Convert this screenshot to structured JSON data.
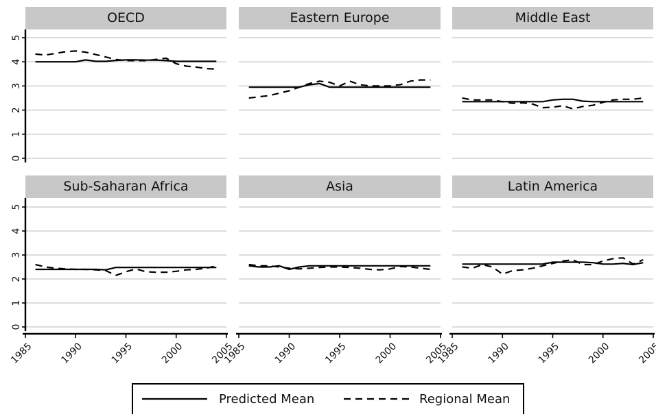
{
  "chart_data": {
    "type": "line",
    "xlim": [
      1985,
      2005
    ],
    "ylim": [
      0,
      5
    ],
    "x_ticks": [
      "1985",
      "1990",
      "1995",
      "2000",
      "2005"
    ],
    "y_ticks": [
      "0",
      "1",
      "2",
      "3",
      "4",
      "5"
    ],
    "grid": true,
    "legend_position": "bottom",
    "legend": [
      "Predicted Mean",
      "Regional Mean"
    ],
    "x": [
      1986,
      1987,
      1988,
      1989,
      1990,
      1991,
      1992,
      1993,
      1994,
      1995,
      1996,
      1997,
      1998,
      1999,
      2000,
      2001,
      2002,
      2003,
      2004
    ],
    "panels": [
      {
        "title": "OECD",
        "series": [
          {
            "name": "Predicted Mean",
            "values": [
              4.0,
              4.0,
              4.0,
              4.0,
              4.0,
              4.08,
              4.02,
              4.02,
              4.06,
              4.08,
              4.08,
              4.07,
              4.07,
              4.05,
              4.02,
              4.02,
              4.02,
              4.02,
              4.02
            ]
          },
          {
            "name": "Regional Mean",
            "values": [
              4.32,
              4.28,
              4.35,
              4.42,
              4.45,
              4.4,
              4.3,
              4.2,
              4.1,
              4.05,
              4.05,
              4.05,
              4.1,
              4.15,
              3.92,
              3.82,
              3.78,
              3.72,
              3.7
            ]
          }
        ]
      },
      {
        "title": "Eastern Europe",
        "series": [
          {
            "name": "Predicted Mean",
            "values": [
              2.95,
              2.95,
              2.95,
              2.95,
              2.95,
              2.95,
              3.05,
              3.1,
              2.95,
              2.95,
              2.95,
              2.95,
              2.95,
              2.95,
              2.95,
              2.95,
              2.95,
              2.95,
              2.95
            ]
          },
          {
            "name": "Regional Mean",
            "values": [
              2.5,
              2.55,
              2.6,
              2.7,
              2.8,
              2.95,
              3.1,
              3.2,
              3.15,
              3.0,
              3.2,
              3.05,
              3.0,
              3.0,
              3.0,
              3.05,
              3.2,
              3.25,
              3.25
            ]
          }
        ]
      },
      {
        "title": "Middle East",
        "series": [
          {
            "name": "Predicted Mean",
            "values": [
              2.35,
              2.35,
              2.35,
              2.35,
              2.35,
              2.35,
              2.35,
              2.35,
              2.35,
              2.42,
              2.45,
              2.45,
              2.37,
              2.35,
              2.35,
              2.35,
              2.35,
              2.35,
              2.35
            ]
          },
          {
            "name": "Regional Mean",
            "values": [
              2.5,
              2.42,
              2.42,
              2.42,
              2.35,
              2.28,
              2.3,
              2.25,
              2.1,
              2.12,
              2.18,
              2.05,
              2.15,
              2.2,
              2.32,
              2.42,
              2.45,
              2.45,
              2.5
            ]
          }
        ]
      },
      {
        "title": "Sub-Saharan Africa",
        "series": [
          {
            "name": "Predicted Mean",
            "values": [
              2.4,
              2.4,
              2.4,
              2.4,
              2.4,
              2.4,
              2.4,
              2.38,
              2.48,
              2.48,
              2.48,
              2.48,
              2.48,
              2.48,
              2.48,
              2.48,
              2.48,
              2.48,
              2.48
            ]
          },
          {
            "name": "Regional Mean",
            "values": [
              2.6,
              2.5,
              2.45,
              2.42,
              2.4,
              2.4,
              2.38,
              2.35,
              2.15,
              2.3,
              2.42,
              2.3,
              2.28,
              2.28,
              2.32,
              2.38,
              2.4,
              2.45,
              2.55
            ]
          }
        ]
      },
      {
        "title": "Asia",
        "series": [
          {
            "name": "Predicted Mean",
            "values": [
              2.55,
              2.5,
              2.5,
              2.55,
              2.4,
              2.5,
              2.55,
              2.55,
              2.55,
              2.55,
              2.55,
              2.55,
              2.55,
              2.55,
              2.55,
              2.55,
              2.55,
              2.55,
              2.55
            ]
          },
          {
            "name": "Regional Mean",
            "values": [
              2.6,
              2.55,
              2.55,
              2.5,
              2.45,
              2.42,
              2.45,
              2.48,
              2.5,
              2.5,
              2.48,
              2.45,
              2.4,
              2.38,
              2.42,
              2.52,
              2.5,
              2.45,
              2.4
            ]
          }
        ]
      },
      {
        "title": "Latin America",
        "series": [
          {
            "name": "Predicted Mean",
            "values": [
              2.62,
              2.62,
              2.62,
              2.62,
              2.62,
              2.62,
              2.62,
              2.62,
              2.62,
              2.7,
              2.7,
              2.7,
              2.7,
              2.68,
              2.62,
              2.62,
              2.65,
              2.6,
              2.68
            ]
          },
          {
            "name": "Regional Mean",
            "values": [
              2.5,
              2.45,
              2.6,
              2.5,
              2.2,
              2.35,
              2.38,
              2.45,
              2.55,
              2.65,
              2.75,
              2.8,
              2.6,
              2.6,
              2.75,
              2.85,
              2.88,
              2.62,
              2.8
            ]
          }
        ]
      }
    ]
  }
}
